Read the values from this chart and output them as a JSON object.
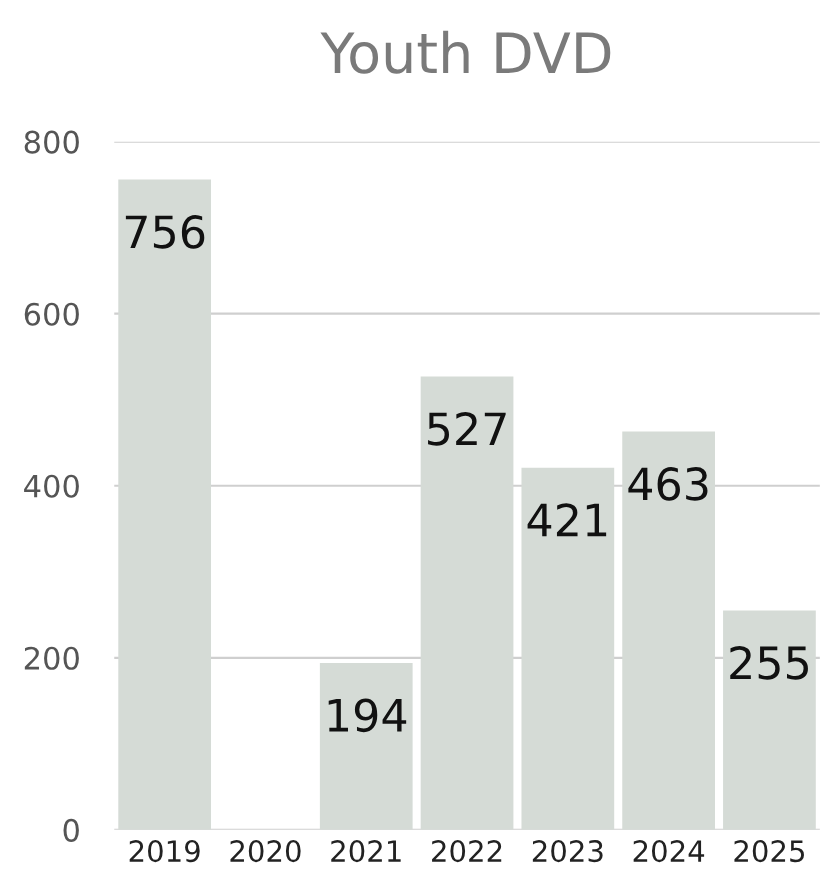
{
  "chart_data": {
    "type": "bar",
    "title": "Youth DVD",
    "categories": [
      "2019",
      "2020",
      "2021",
      "2022",
      "2023",
      "2024",
      "2025"
    ],
    "values": [
      756,
      0,
      194,
      527,
      421,
      463,
      255
    ],
    "value_labels": [
      "756",
      null,
      "194",
      "527",
      "421",
      "463",
      "255"
    ],
    "color": "#d5dbd6",
    "ylim": [
      0,
      800
    ],
    "yticks": [
      0,
      200,
      400,
      600,
      800
    ],
    "grid": "y"
  }
}
